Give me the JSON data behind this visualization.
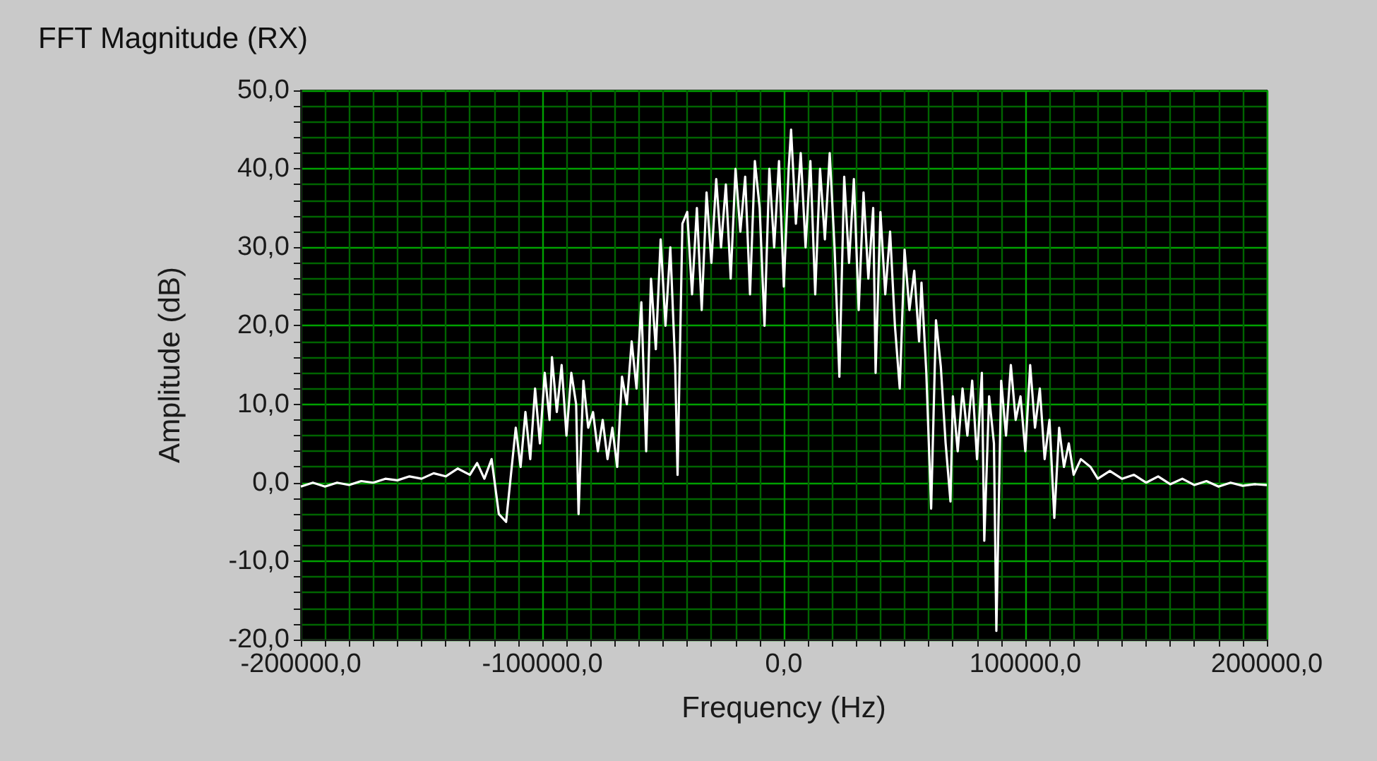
{
  "chart_data": {
    "type": "line",
    "title": "FFT Magnitude (RX)",
    "xlabel": "Frequency (Hz)",
    "ylabel": "Amplitude (dB)",
    "x": [
      -200000,
      -195000,
      -190000,
      -185000,
      -180000,
      -175000,
      -170000,
      -165000,
      -160000,
      -155000,
      -150000,
      -145000,
      -140000,
      -135000,
      -130000,
      -127000,
      -124000,
      -121000,
      -118000,
      -115000,
      -113000,
      -111000,
      -109000,
      -107000,
      -105000,
      -103000,
      -101000,
      -99000,
      -97000,
      -96000,
      -94000,
      -92000,
      -90000,
      -88000,
      -86000,
      -85000,
      -83000,
      -81000,
      -79000,
      -77000,
      -75000,
      -73000,
      -71000,
      -69000,
      -67000,
      -65000,
      -63000,
      -61000,
      -59000,
      -57000,
      -55000,
      -53000,
      -51000,
      -49000,
      -47000,
      -45000,
      -44000,
      -42000,
      -40000,
      -38000,
      -36000,
      -34000,
      -32000,
      -30000,
      -28000,
      -26000,
      -24000,
      -22000,
      -20000,
      -18000,
      -16000,
      -14000,
      -12000,
      -10000,
      -8000,
      -6000,
      -4000,
      -2000,
      0,
      2000,
      3000,
      5000,
      7000,
      9000,
      11000,
      13000,
      15000,
      17000,
      19000,
      21000,
      23000,
      25000,
      27000,
      29000,
      31000,
      33000,
      35000,
      37000,
      38000,
      40000,
      42000,
      44000,
      46000,
      48000,
      50000,
      52000,
      54000,
      56000,
      57000,
      59000,
      61000,
      63000,
      65000,
      67000,
      69000,
      70000,
      72000,
      74000,
      76000,
      78000,
      80000,
      82000,
      83000,
      85000,
      87000,
      88000,
      90000,
      92000,
      94000,
      96000,
      98000,
      100000,
      102000,
      104000,
      106000,
      108000,
      110000,
      112000,
      114000,
      116000,
      118000,
      120000,
      123000,
      127000,
      130000,
      135000,
      140000,
      145000,
      150000,
      155000,
      160000,
      165000,
      170000,
      175000,
      180000,
      185000,
      190000,
      195000,
      200000
    ],
    "series": [
      {
        "color": "#ffffff",
        "values": [
          -0.5,
          0,
          -0.5,
          0,
          -0.3,
          0.2,
          0,
          0.5,
          0.3,
          0.8,
          0.5,
          1.2,
          0.8,
          1.8,
          1,
          2.5,
          0.5,
          3,
          -4,
          -5,
          1,
          7,
          2,
          9,
          3,
          12,
          5,
          14,
          8,
          16,
          9,
          15,
          6,
          14,
          10,
          -4,
          13,
          7,
          9,
          4,
          8,
          3,
          7,
          2,
          13.5,
          10,
          18,
          12,
          23,
          4,
          26,
          17,
          31,
          20,
          30,
          15,
          1,
          33,
          34.5,
          24,
          35,
          22,
          37,
          28,
          38.7,
          30,
          38,
          26,
          40,
          32,
          39,
          24,
          41,
          35,
          20,
          40,
          30,
          41,
          25,
          40,
          45,
          33,
          42,
          30,
          41,
          24,
          40,
          31,
          42,
          30,
          13.5,
          39,
          28,
          38.7,
          22,
          37,
          26,
          35,
          14,
          34.5,
          24,
          32,
          20,
          12,
          29.7,
          22,
          27,
          18,
          25.5,
          14,
          -3.3,
          20.7,
          14.8,
          5,
          -2.4,
          11,
          4,
          12,
          6,
          13,
          3,
          14,
          -7.4,
          11,
          5,
          -18.9,
          13,
          6,
          15,
          8,
          11,
          4,
          15,
          7,
          12,
          3,
          8,
          -4.5,
          7,
          2,
          5,
          1,
          3,
          2,
          0.5,
          1.5,
          0.5,
          1,
          0,
          0.8,
          -0.2,
          0.5,
          -0.3,
          0.2,
          -0.5,
          0,
          -0.4,
          -0.2,
          -0.3
        ]
      }
    ],
    "xlim": [
      -200000,
      200000
    ],
    "xticks": [
      {
        "value": -200000,
        "label": "-200000,0"
      },
      {
        "value": -190000,
        "label": null
      },
      {
        "value": -180000,
        "label": null
      },
      {
        "value": -170000,
        "label": null
      },
      {
        "value": -160000,
        "label": null
      },
      {
        "value": -150000,
        "label": null
      },
      {
        "value": -140000,
        "label": null
      },
      {
        "value": -130000,
        "label": null
      },
      {
        "value": -120000,
        "label": null
      },
      {
        "value": -110000,
        "label": null
      },
      {
        "value": -100000,
        "label": "-100000,0"
      },
      {
        "value": -90000,
        "label": null
      },
      {
        "value": -80000,
        "label": null
      },
      {
        "value": -70000,
        "label": null
      },
      {
        "value": -60000,
        "label": null
      },
      {
        "value": -50000,
        "label": null
      },
      {
        "value": -40000,
        "label": null
      },
      {
        "value": -30000,
        "label": null
      },
      {
        "value": -20000,
        "label": null
      },
      {
        "value": -10000,
        "label": null
      },
      {
        "value": 0,
        "label": "0,0"
      },
      {
        "value": 10000,
        "label": null
      },
      {
        "value": 20000,
        "label": null
      },
      {
        "value": 30000,
        "label": null
      },
      {
        "value": 40000,
        "label": null
      },
      {
        "value": 50000,
        "label": null
      },
      {
        "value": 60000,
        "label": null
      },
      {
        "value": 70000,
        "label": null
      },
      {
        "value": 80000,
        "label": null
      },
      {
        "value": 90000,
        "label": null
      },
      {
        "value": 100000,
        "label": "100000,0"
      },
      {
        "value": 110000,
        "label": null
      },
      {
        "value": 120000,
        "label": null
      },
      {
        "value": 130000,
        "label": null
      },
      {
        "value": 140000,
        "label": null
      },
      {
        "value": 150000,
        "label": null
      },
      {
        "value": 160000,
        "label": null
      },
      {
        "value": 170000,
        "label": null
      },
      {
        "value": 180000,
        "label": null
      },
      {
        "value": 190000,
        "label": null
      },
      {
        "value": 200000,
        "label": "200000,0"
      }
    ],
    "ylim": [
      -20,
      50
    ],
    "yticks": [
      {
        "value": -20,
        "label": "-20,0"
      },
      {
        "value": -18,
        "label": null
      },
      {
        "value": -16,
        "label": null
      },
      {
        "value": -14,
        "label": null
      },
      {
        "value": -12,
        "label": null
      },
      {
        "value": -10,
        "label": "-10,0"
      },
      {
        "value": -8,
        "label": null
      },
      {
        "value": -6,
        "label": null
      },
      {
        "value": -4,
        "label": null
      },
      {
        "value": -2,
        "label": null
      },
      {
        "value": 0,
        "label": "0,0"
      },
      {
        "value": 2,
        "label": null
      },
      {
        "value": 4,
        "label": null
      },
      {
        "value": 6,
        "label": null
      },
      {
        "value": 8,
        "label": null
      },
      {
        "value": 10,
        "label": "10,0"
      },
      {
        "value": 12,
        "label": null
      },
      {
        "value": 14,
        "label": null
      },
      {
        "value": 16,
        "label": null
      },
      {
        "value": 18,
        "label": null
      },
      {
        "value": 20,
        "label": "20,0"
      },
      {
        "value": 22,
        "label": null
      },
      {
        "value": 24,
        "label": null
      },
      {
        "value": 26,
        "label": null
      },
      {
        "value": 28,
        "label": null
      },
      {
        "value": 30,
        "label": "30,0"
      },
      {
        "value": 32,
        "label": null
      },
      {
        "value": 34,
        "label": null
      },
      {
        "value": 36,
        "label": null
      },
      {
        "value": 38,
        "label": null
      },
      {
        "value": 40,
        "label": "40,0"
      },
      {
        "value": 42,
        "label": null
      },
      {
        "value": 44,
        "label": null
      },
      {
        "value": 46,
        "label": null
      },
      {
        "value": 48,
        "label": null
      },
      {
        "value": 50,
        "label": "50,0"
      }
    ],
    "grid": true,
    "marker": "none",
    "line_style": "solid"
  }
}
